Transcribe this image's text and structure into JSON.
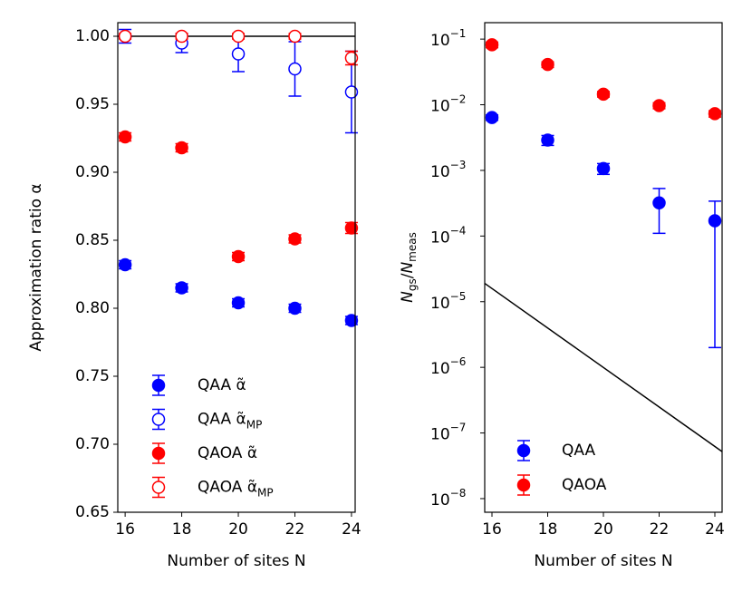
{
  "chart_data": [
    {
      "type": "errorbar",
      "xlabel": "Number of sites N",
      "ylabel": "Approximation ratio α",
      "x": [
        16,
        18,
        20,
        22,
        24
      ],
      "xlim": [
        15.74,
        24.13
      ],
      "xticks": [
        16,
        18,
        20,
        22,
        24
      ],
      "ylim": [
        0.65,
        1.01
      ],
      "yticks": [
        {
          "value": 0.65,
          "label": "0.65"
        },
        {
          "value": 0.7,
          "label": "0.70"
        },
        {
          "value": 0.75,
          "label": "0.75"
        },
        {
          "value": 0.8,
          "label": "0.80"
        },
        {
          "value": 0.85,
          "label": "0.85"
        },
        {
          "value": 0.9,
          "label": "0.90"
        },
        {
          "value": 0.95,
          "label": "0.95"
        },
        {
          "value": 1.0,
          "label": "1.00"
        }
      ],
      "hline": 1.0,
      "legend": "lower left",
      "series": [
        {
          "name": "QAA α̃",
          "color": "#0000ff",
          "filled": true,
          "values": [
            0.832,
            0.815,
            0.804,
            0.8,
            0.791
          ],
          "errors": [
            0.003,
            0.003,
            0.003,
            0.003,
            0.003
          ]
        },
        {
          "name": "QAA α̃",
          "subscript": "MP",
          "color": "#0000ff",
          "filled": false,
          "values": [
            1.0,
            0.995,
            0.987,
            0.976,
            0.959
          ],
          "errors": [
            0.005,
            0.007,
            0.013,
            0.02,
            0.03
          ]
        },
        {
          "name": "QAOA α̃",
          "color": "#ff0000",
          "filled": true,
          "values": [
            0.926,
            0.918,
            0.838,
            0.851,
            0.859
          ],
          "errors": [
            0.003,
            0.003,
            0.003,
            0.003,
            0.004
          ]
        },
        {
          "name": "QAOA α̃",
          "subscript": "MP",
          "color": "#ff0000",
          "filled": false,
          "values": [
            1.0,
            1.0,
            1.0,
            1.0,
            0.984
          ],
          "errors": [
            0.002,
            0.002,
            0.002,
            0.002,
            0.005
          ]
        }
      ]
    },
    {
      "type": "errorbar",
      "xlabel": "Number of sites N",
      "ylabel": [
        {
          "text": "N"
        },
        {
          "text": "gs",
          "sub": true
        },
        {
          "text": "/"
        },
        {
          "text": "N"
        },
        {
          "text": "meas",
          "sub": true
        }
      ],
      "x": [
        16,
        18,
        20,
        22,
        24
      ],
      "xlim": [
        15.74,
        24.26
      ],
      "xticks": [
        16,
        18,
        20,
        22,
        24
      ],
      "log_y": true,
      "ylim": [
        6.2e-09,
        0.178
      ],
      "yticks": [
        {
          "value": 1e-08,
          "label": "10",
          "sup": "−8"
        },
        {
          "value": 1e-07,
          "label": "10",
          "sup": "−7"
        },
        {
          "value": 1e-06,
          "label": "10",
          "sup": "−6"
        },
        {
          "value": 1e-05,
          "label": "10",
          "sup": "−5"
        },
        {
          "value": 0.0001,
          "label": "10",
          "sup": "−4"
        },
        {
          "value": 0.001,
          "label": "10",
          "sup": "−3"
        },
        {
          "value": 0.01,
          "label": "10",
          "sup": "−2"
        },
        {
          "value": 0.1,
          "label": "10",
          "sup": "−1"
        }
      ],
      "reference_line": {
        "x": [
          15.74,
          24.26
        ],
        "values": [
          1.9e-05,
          5.2e-08
        ]
      },
      "legend": "lower left",
      "series": [
        {
          "name": "QAA",
          "color": "#0000ff",
          "filled": true,
          "values": [
            0.0064,
            0.0029,
            0.00107,
            0.00032,
            0.000171
          ],
          "errors": [
            0.0006,
            0.0005,
            0.0002,
            0.00021,
            0.000169
          ]
        },
        {
          "name": "QAOA",
          "color": "#ff0000",
          "filled": true,
          "values": [
            0.082,
            0.041,
            0.0145,
            0.0097,
            0.0073
          ],
          "errors": [
            0.008,
            0.004,
            0.0014,
            0.001,
            0.0008
          ]
        }
      ]
    }
  ]
}
